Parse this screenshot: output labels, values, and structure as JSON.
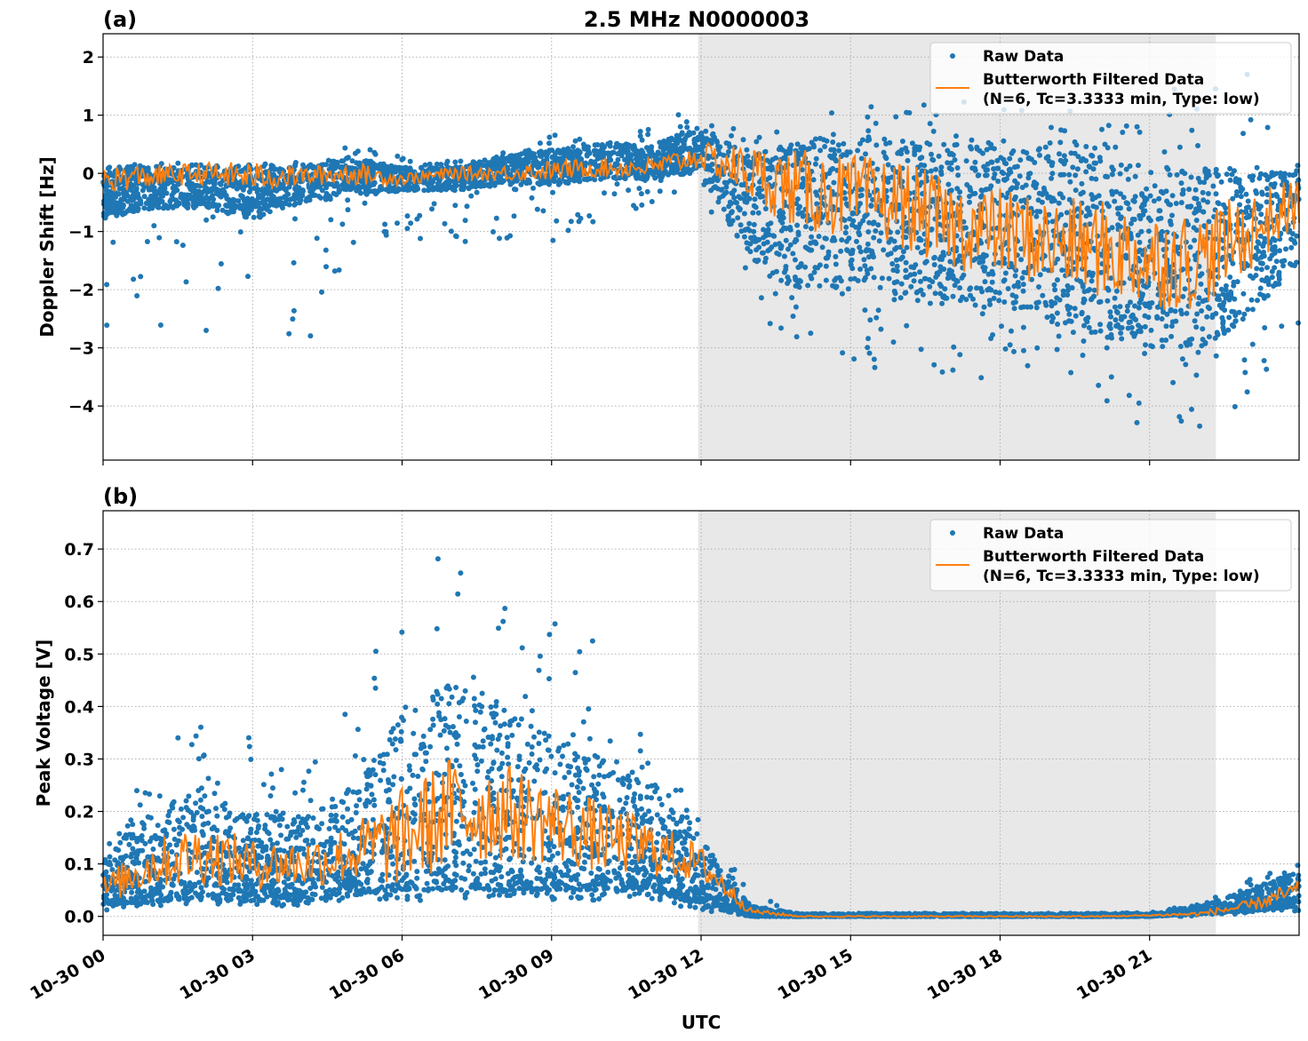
{
  "title": "2.5 MHz N0000003",
  "chart_data": [
    {
      "type": "scatter",
      "panel_label": "(a)",
      "ylabel": "Doppler Shift [Hz]",
      "xlabel": "",
      "xlim_hours": [
        0,
        24
      ],
      "ylim": [
        -4.93,
        2.4
      ],
      "yticks": [
        2,
        1,
        0,
        -1,
        -2,
        -3,
        -4
      ],
      "ytick_labels": [
        "2",
        "1",
        "0",
        "−1",
        "−2",
        "−3",
        "−4"
      ],
      "grid": true,
      "legend_position": "top-right",
      "shaded_span_hours": [
        11.94,
        22.33
      ],
      "hours": [
        0,
        1,
        2,
        3,
        4,
        5,
        6,
        7,
        8,
        9,
        10,
        11,
        12,
        13,
        14,
        15,
        16,
        17,
        18,
        19,
        20,
        21,
        22,
        23,
        24
      ],
      "series": [
        {
          "name": "Raw Data",
          "kind": "points",
          "color": "#1f77b4",
          "band_low": [
            -0.8,
            -0.6,
            -0.6,
            -0.8,
            -0.5,
            -0.4,
            -0.3,
            -0.3,
            -0.2,
            -0.2,
            -0.1,
            -0.1,
            0.0,
            -1.5,
            -2.0,
            -2.0,
            -2.2,
            -2.3,
            -2.3,
            -2.5,
            -2.8,
            -3.0,
            -3.0,
            -2.5,
            -1.5
          ],
          "band_high": [
            0.1,
            0.1,
            0.1,
            0.1,
            0.1,
            0.3,
            0.1,
            0.1,
            0.3,
            0.4,
            0.5,
            0.5,
            0.8,
            0.3,
            0.6,
            0.6,
            0.6,
            0.5,
            0.5,
            0.4,
            0.3,
            0.1,
            0.1,
            0.05,
            0.05
          ],
          "min": [
            -3.0,
            -2.8,
            -2.8,
            -2.7,
            -3.3,
            -1.8,
            -1.0,
            -1.4,
            -1.2,
            -1.3,
            -0.8,
            -0.6,
            -0.3,
            -2.5,
            -2.9,
            -3.5,
            -3.2,
            -3.5,
            -3.7,
            -3.3,
            -3.9,
            -4.6,
            -4.4,
            -4.4,
            -2.8
          ],
          "max": [
            0.1,
            0.2,
            0.15,
            0.15,
            0.2,
            0.5,
            0.3,
            0.2,
            0.35,
            0.7,
            0.6,
            0.8,
            1.2,
            0.6,
            1.2,
            1.0,
            1.4,
            1.5,
            1.3,
            1.2,
            0.9,
            1.3,
            2.1,
            2.0,
            0.1
          ]
        },
        {
          "name": "Butterworth Filtered Data\n(N=6, Tc=3.3333 min, Type: low)",
          "kind": "line",
          "color": "#ff7f0e",
          "values": [
            -0.1,
            -0.05,
            0.0,
            -0.05,
            -0.05,
            0.0,
            -0.1,
            0.0,
            0.0,
            0.05,
            0.1,
            0.1,
            0.3,
            0.0,
            -0.3,
            -0.4,
            -0.5,
            -0.9,
            -1.0,
            -1.2,
            -1.3,
            -1.5,
            -1.5,
            -1.0,
            -0.5
          ]
        }
      ],
      "legend": [
        "Raw Data",
        "Butterworth Filtered Data",
        "(N=6, Tc=3.3333 min, Type: low)"
      ]
    },
    {
      "type": "scatter",
      "panel_label": "(b)",
      "ylabel": "Peak Voltage [V]",
      "xlabel": "UTC",
      "xlim_hours": [
        0,
        24
      ],
      "ylim": [
        -0.036,
        0.773
      ],
      "yticks": [
        0.7,
        0.6,
        0.5,
        0.4,
        0.3,
        0.2,
        0.1,
        0.0
      ],
      "ytick_labels": [
        "0.7",
        "0.6",
        "0.5",
        "0.4",
        "0.3",
        "0.2",
        "0.1",
        "0.0"
      ],
      "xtick_hours": [
        0,
        3,
        6,
        9,
        12,
        15,
        18,
        21
      ],
      "xtick_labels": [
        "10-30 00",
        "10-30 03",
        "10-30 06",
        "10-30 09",
        "10-30 12",
        "10-30 15",
        "10-30 18",
        "10-30 21"
      ],
      "grid": true,
      "legend_position": "top-right",
      "shaded_span_hours": [
        11.94,
        22.33
      ],
      "hours": [
        0,
        1,
        2,
        3,
        4,
        5,
        6,
        7,
        8,
        9,
        10,
        11,
        12,
        13,
        14,
        15,
        16,
        17,
        18,
        19,
        20,
        21,
        22,
        23,
        24
      ],
      "series": [
        {
          "name": "Raw Data",
          "kind": "points",
          "color": "#1f77b4",
          "band_low": [
            0.02,
            0.03,
            0.03,
            0.03,
            0.03,
            0.04,
            0.05,
            0.05,
            0.05,
            0.05,
            0.05,
            0.05,
            0.02,
            0.0,
            0.0,
            0.0,
            0.0,
            0.0,
            0.0,
            0.0,
            0.0,
            0.0,
            0.005,
            0.01,
            0.02
          ],
          "band_high": [
            0.12,
            0.2,
            0.25,
            0.2,
            0.2,
            0.25,
            0.4,
            0.45,
            0.4,
            0.35,
            0.3,
            0.25,
            0.15,
            0.02,
            0.005,
            0.005,
            0.005,
            0.005,
            0.005,
            0.005,
            0.005,
            0.005,
            0.02,
            0.05,
            0.09
          ],
          "min": [
            0.01,
            0.02,
            0.02,
            0.02,
            0.02,
            0.03,
            0.03,
            0.03,
            0.04,
            0.03,
            0.03,
            0.03,
            0.01,
            0.0,
            0.0,
            0.0,
            0.0,
            0.0,
            0.0,
            0.0,
            0.0,
            0.0,
            0.0,
            0.005,
            0.01
          ],
          "max": [
            0.15,
            0.3,
            0.38,
            0.36,
            0.3,
            0.42,
            0.61,
            0.73,
            0.59,
            0.59,
            0.58,
            0.3,
            0.2,
            0.05,
            0.006,
            0.006,
            0.006,
            0.006,
            0.006,
            0.006,
            0.006,
            0.008,
            0.025,
            0.07,
            0.1
          ]
        },
        {
          "name": "Butterworth Filtered Data\n(N=6, Tc=3.3333 min, Type: low)",
          "kind": "line",
          "color": "#ff7f0e",
          "values": [
            0.05,
            0.1,
            0.12,
            0.1,
            0.1,
            0.12,
            0.15,
            0.2,
            0.2,
            0.18,
            0.15,
            0.13,
            0.1,
            0.01,
            0.0,
            0.0,
            0.0,
            0.0,
            0.0,
            0.0,
            0.0,
            0.002,
            0.005,
            0.02,
            0.05
          ]
        }
      ],
      "legend": [
        "Raw Data",
        "Butterworth Filtered Data",
        "(N=6, Tc=3.3333 min, Type: low)"
      ]
    }
  ],
  "colors": {
    "raw": "#1f77b4",
    "filtered": "#ff7f0e",
    "shade": "#e8e8e8",
    "grid": "#b0b0b0"
  }
}
